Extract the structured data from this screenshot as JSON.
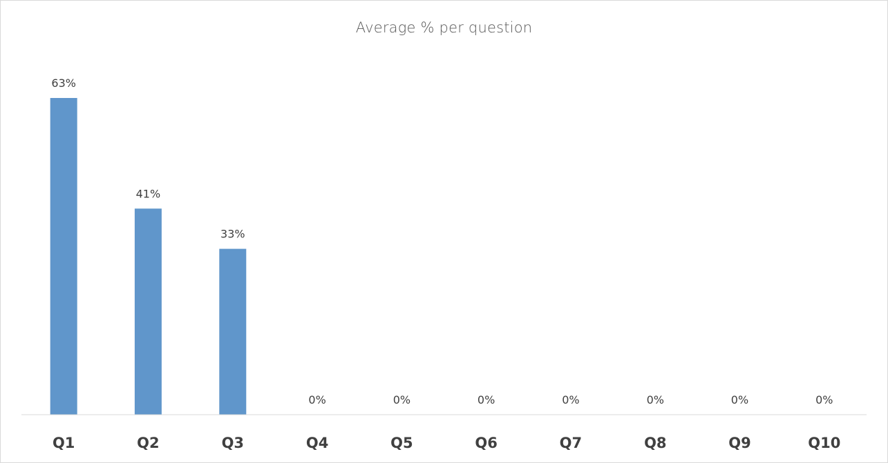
{
  "chart_data": {
    "type": "bar",
    "title": "Average % per question",
    "categories": [
      "Q1",
      "Q2",
      "Q3",
      "Q4",
      "Q5",
      "Q6",
      "Q7",
      "Q8",
      "Q9",
      "Q10"
    ],
    "values": [
      63,
      41,
      33,
      0,
      0,
      0,
      0,
      0,
      0,
      0
    ],
    "data_labels": [
      "63%",
      "41%",
      "33%",
      "0%",
      "0%",
      "0%",
      "0%",
      "0%",
      "0%",
      "0%"
    ],
    "xlabel": "",
    "ylabel": "",
    "y_unit": "%",
    "grid": false,
    "legend": "none",
    "bar_color": "#6096cb"
  }
}
